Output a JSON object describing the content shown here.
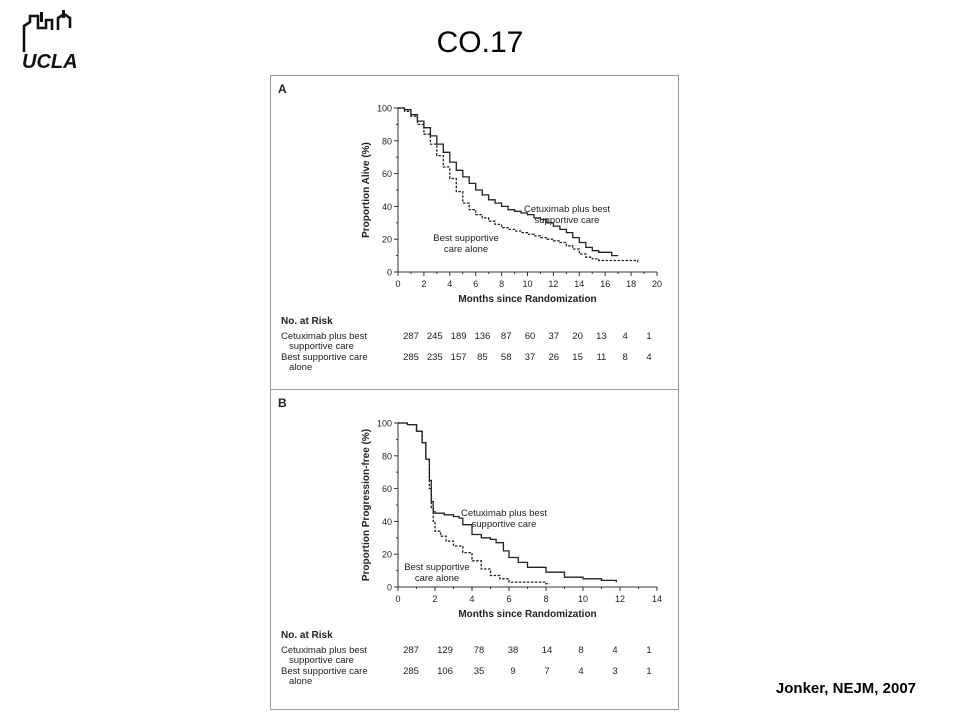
{
  "slide": {
    "title": "CO.17",
    "logo_text": "UCLA",
    "citation": "Jonker, NEJM, 2007"
  },
  "colors": {
    "text": "#000000",
    "panel_border": "#9a9a9a",
    "curve": "#222222"
  },
  "chart_data": [
    {
      "type": "line",
      "panel_label": "A",
      "xlabel": "Months since Randomization",
      "ylabel": "Proportion Alive (%)",
      "xlim": [
        0,
        20
      ],
      "ylim": [
        0,
        100
      ],
      "x_ticks": [
        0,
        2,
        4,
        6,
        8,
        10,
        12,
        14,
        16,
        18,
        20
      ],
      "y_ticks": [
        0,
        20,
        40,
        60,
        80,
        100
      ],
      "annotations": [
        {
          "lines": [
            "Cetuximab plus best",
            "supportive care"
          ]
        },
        {
          "lines": [
            "Best supportive",
            "care alone"
          ]
        }
      ],
      "series": [
        {
          "name": "Cetuximab plus best supportive care",
          "style": "solid",
          "x": [
            0,
            0.5,
            1,
            1.5,
            2,
            2.5,
            3,
            3.5,
            4,
            4.5,
            5,
            5.5,
            6,
            6.5,
            7,
            7.5,
            8,
            8.5,
            9,
            9.5,
            10,
            10.5,
            11,
            11.5,
            12,
            12.5,
            13,
            13.5,
            14,
            14.5,
            15,
            15.5,
            16,
            16.5,
            17
          ],
          "y": [
            100,
            99,
            96,
            92,
            88,
            83,
            78,
            73,
            67,
            62,
            58,
            54,
            50,
            47,
            44,
            42,
            40,
            38,
            37,
            36,
            35,
            33,
            32,
            30,
            28,
            26,
            24,
            21,
            18,
            15,
            13,
            12,
            12,
            10,
            10
          ]
        },
        {
          "name": "Best supportive care alone",
          "style": "dashed",
          "x": [
            0,
            0.5,
            1,
            1.5,
            2,
            2.5,
            3,
            3.5,
            4,
            4.5,
            5,
            5.5,
            6,
            6.5,
            7,
            7.5,
            8,
            8.5,
            9,
            9.5,
            10,
            10.5,
            11,
            11.5,
            12,
            12.5,
            13,
            13.5,
            14,
            14.5,
            15,
            15.5,
            16,
            16.5,
            17,
            17.5,
            18,
            18.5
          ],
          "y": [
            100,
            98,
            95,
            90,
            84,
            78,
            71,
            64,
            57,
            49,
            42,
            38,
            35,
            33,
            31,
            29,
            27,
            26,
            25,
            24,
            23,
            22,
            21,
            20,
            19,
            18,
            16,
            14,
            11,
            9,
            8,
            7,
            7,
            7,
            7,
            7,
            7,
            6
          ]
        }
      ],
      "at_risk": {
        "header": "No. at Risk",
        "rows": [
          {
            "label": [
              "Cetuximab plus best",
              "supportive care"
            ],
            "values": [
              "287",
              "245",
              "189",
              "136",
              "87",
              "60",
              "37",
              "20",
              "13",
              "4",
              "1"
            ]
          },
          {
            "label": [
              "Best supportive care",
              "alone"
            ],
            "values": [
              "285",
              "235",
              "157",
              "85",
              "58",
              "37",
              "26",
              "15",
              "11",
              "8",
              "4"
            ]
          }
        ]
      }
    },
    {
      "type": "line",
      "panel_label": "B",
      "xlabel": "Months since Randomization",
      "ylabel": "Proportion Progression-free (%)",
      "xlim": [
        0,
        14
      ],
      "ylim": [
        0,
        100
      ],
      "x_ticks": [
        0,
        2,
        4,
        6,
        8,
        10,
        12,
        14
      ],
      "y_ticks": [
        0,
        20,
        40,
        60,
        80,
        100
      ],
      "annotations": [
        {
          "lines": [
            "Cetuximab plus best",
            "supportive care"
          ]
        },
        {
          "lines": [
            "Best supportive",
            "care alone"
          ]
        }
      ],
      "series": [
        {
          "name": "Cetuximab plus best supportive care",
          "style": "solid",
          "x": [
            0,
            0.5,
            1,
            1.3,
            1.5,
            1.7,
            1.8,
            1.9,
            2,
            2.5,
            3,
            3.3,
            3.5,
            4,
            4.5,
            5,
            5.3,
            5.7,
            6,
            6.5,
            7,
            8,
            9,
            10,
            11,
            11.8
          ],
          "y": [
            100,
            99,
            95,
            88,
            78,
            65,
            52,
            46,
            45,
            44,
            43,
            42,
            38,
            32,
            30,
            29,
            27,
            22,
            18,
            15,
            12,
            9,
            6,
            5,
            4,
            3
          ]
        },
        {
          "name": "Best supportive care alone",
          "style": "dashed",
          "x": [
            0,
            0.5,
            1,
            1.3,
            1.5,
            1.7,
            1.8,
            1.9,
            2,
            2.3,
            2.6,
            3,
            3.5,
            4,
            4.5,
            5,
            5.5,
            6,
            7,
            8,
            8.2
          ],
          "y": [
            100,
            99,
            95,
            88,
            78,
            60,
            48,
            40,
            34,
            31,
            28,
            25,
            21,
            16,
            11,
            7,
            5,
            3,
            3,
            2,
            2
          ]
        }
      ],
      "at_risk": {
        "header": "No. at Risk",
        "rows": [
          {
            "label": [
              "Cetuximab plus best",
              "supportive care"
            ],
            "values": [
              "287",
              "129",
              "78",
              "38",
              "14",
              "8",
              "4",
              "1"
            ]
          },
          {
            "label": [
              "Best supportive care",
              "alone"
            ],
            "values": [
              "285",
              "106",
              "35",
              "9",
              "7",
              "4",
              "3",
              "1"
            ]
          }
        ]
      }
    }
  ]
}
